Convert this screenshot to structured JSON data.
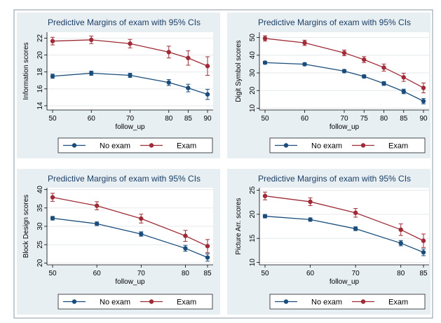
{
  "chart_data": [
    {
      "type": "line",
      "title": "Predictive Margins of exam with 95% CIs",
      "xlabel": "follow_up",
      "ylabel": "Information scores",
      "x": [
        50,
        60,
        70,
        80,
        85,
        90
      ],
      "xticks": [
        "50",
        "60",
        "70",
        "80",
        "85",
        "90"
      ],
      "ylim": [
        13.5,
        22.7
      ],
      "yticks": [
        14,
        16,
        18,
        20,
        22
      ],
      "series": [
        {
          "name": "No exam",
          "color": "#1a4d7c",
          "values": [
            17.5,
            17.85,
            17.6,
            16.75,
            16.1,
            15.35
          ],
          "ci": [
            0.25,
            0.25,
            0.25,
            0.35,
            0.45,
            0.6
          ]
        },
        {
          "name": "Exam",
          "color": "#9e2b36",
          "values": [
            21.65,
            21.8,
            21.35,
            20.35,
            19.65,
            18.7
          ],
          "ci": [
            0.45,
            0.45,
            0.5,
            0.7,
            0.85,
            1.1
          ]
        }
      ],
      "legend": "bottom"
    },
    {
      "type": "line",
      "title": "Predictive Margins of exam with 95% CIs",
      "xlabel": "follow_up",
      "ylabel": "Digit Symbol scores",
      "x": [
        50,
        60,
        70,
        75,
        80,
        85,
        90
      ],
      "xticks": [
        "50",
        "60",
        "70",
        "75",
        "80",
        "85",
        "90"
      ],
      "ylim": [
        9,
        53
      ],
      "yticks": [
        10,
        20,
        30,
        40,
        50
      ],
      "series": [
        {
          "name": "No exam",
          "color": "#1a4d7c",
          "values": [
            35.8,
            34.9,
            31,
            28,
            24,
            19.5,
            14
          ],
          "ci": [
            0.8,
            0.8,
            0.9,
            0.9,
            1.1,
            1.3,
            1.5
          ]
        },
        {
          "name": "Exam",
          "color": "#9e2b36",
          "values": [
            49.5,
            47,
            41.3,
            37.5,
            33,
            27.5,
            21.5
          ],
          "ci": [
            1.5,
            1.5,
            1.6,
            1.7,
            2,
            2.3,
            2.8
          ]
        }
      ],
      "legend": "bottom"
    },
    {
      "type": "line",
      "title": "Predictive Margins of exam with 95% CIs",
      "xlabel": "follow_up",
      "ylabel": "Block Design scores",
      "x": [
        50,
        60,
        70,
        80,
        85
      ],
      "xticks": [
        "50",
        "60",
        "70",
        "80",
        "85"
      ],
      "ylim": [
        19.5,
        40.5
      ],
      "yticks": [
        20,
        25,
        30,
        35,
        40
      ],
      "series": [
        {
          "name": "No exam",
          "color": "#1a4d7c",
          "values": [
            32.2,
            30.7,
            27.9,
            24,
            21.5
          ],
          "ci": [
            0.5,
            0.5,
            0.6,
            0.8,
            1.0
          ]
        },
        {
          "name": "Exam",
          "color": "#9e2b36",
          "values": [
            37.9,
            35.6,
            32.1,
            27.4,
            24.6
          ],
          "ci": [
            1.1,
            1.1,
            1.2,
            1.5,
            1.8
          ]
        }
      ],
      "legend": "bottom"
    },
    {
      "type": "line",
      "title": "Predictive Margins of exam with 95% CIs",
      "xlabel": "follow_up",
      "ylabel": "Picture Arr. scores",
      "x": [
        50,
        60,
        70,
        80,
        85
      ],
      "xticks": [
        "50",
        "60",
        "70",
        "80",
        "85"
      ],
      "ylim": [
        9.5,
        25.5
      ],
      "yticks": [
        10,
        15,
        20,
        25
      ],
      "series": [
        {
          "name": "No exam",
          "color": "#1a4d7c",
          "values": [
            19.6,
            18.9,
            17,
            14,
            12.1
          ],
          "ci": [
            0.35,
            0.35,
            0.4,
            0.55,
            0.7
          ]
        },
        {
          "name": "Exam",
          "color": "#9e2b36",
          "values": [
            23.8,
            22.6,
            20.3,
            16.8,
            14.5
          ],
          "ci": [
            0.8,
            0.8,
            0.9,
            1.2,
            1.4
          ]
        }
      ],
      "legend": "bottom"
    }
  ]
}
